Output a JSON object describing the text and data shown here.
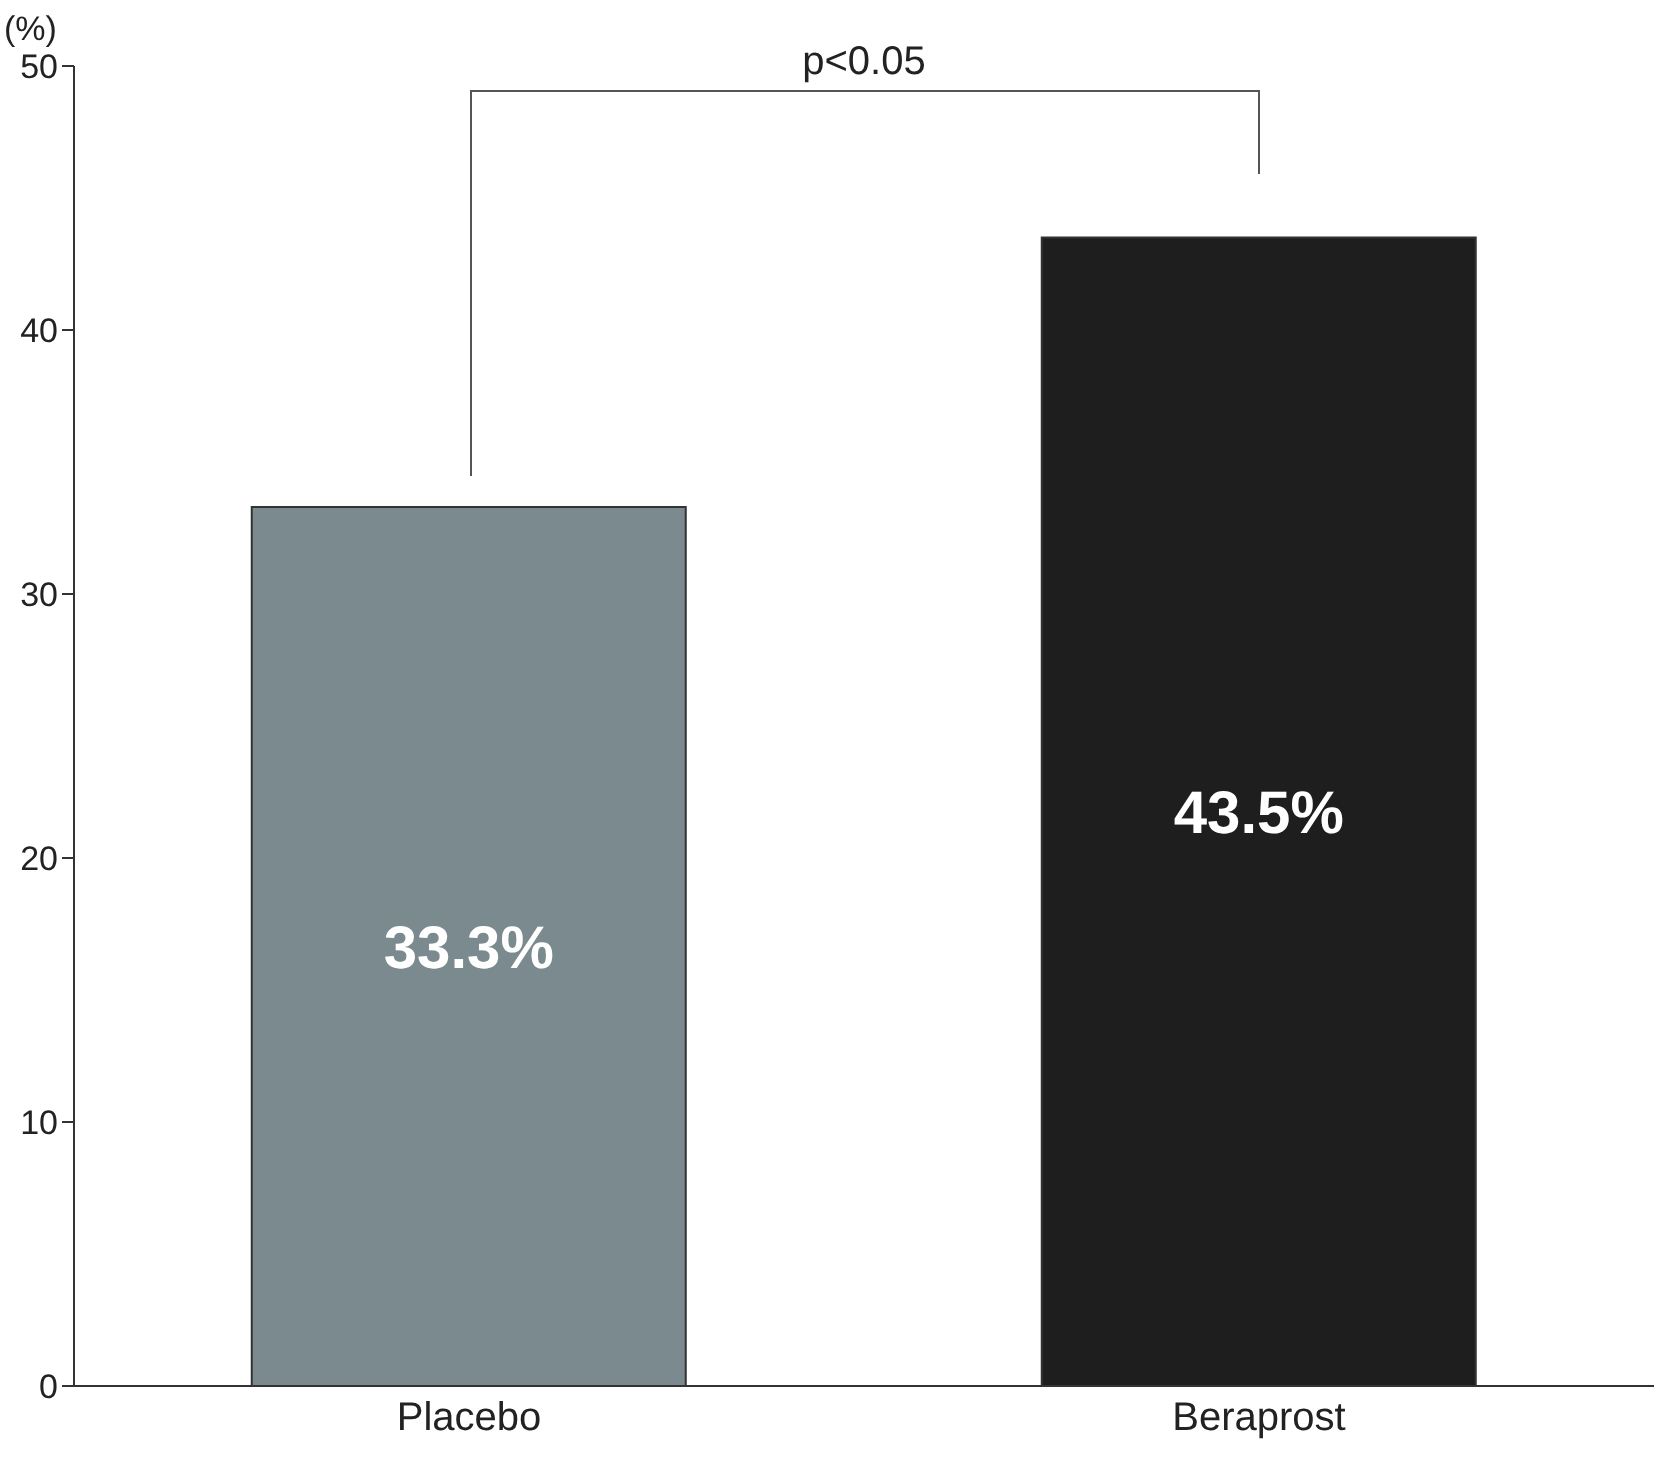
{
  "chart_data": {
    "type": "bar",
    "ylabel": "(%)",
    "categories": [
      "Placebo",
      "Beraprost"
    ],
    "values": [
      33.3,
      43.5
    ],
    "colors": [
      "#7a8a8e",
      "#1e1e1e"
    ],
    "value_labels": [
      "33.3%",
      "43.5%"
    ],
    "ylim": [
      0,
      50
    ],
    "yticks": [
      0,
      10,
      20,
      30,
      40,
      50
    ],
    "grid": false,
    "legend": false,
    "annotations": [
      "p<0.05"
    ]
  }
}
